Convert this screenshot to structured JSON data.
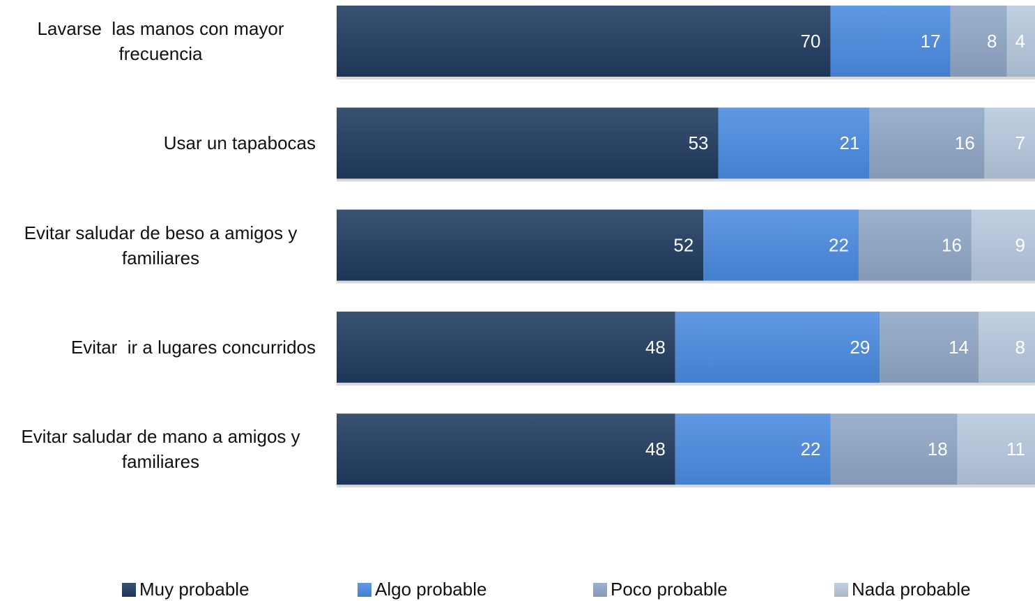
{
  "chart_data": {
    "type": "bar",
    "orientation": "horizontal",
    "stacking": "percent",
    "categories": [
      "Lavarse  las manos con mayor frecuencia",
      "Usar un tapabocas",
      "Evitar saludar de beso a amigos y familiares",
      "Evitar  ir a lugares concurridos",
      "Evitar saludar de mano a amigos y familiares"
    ],
    "series": [
      {
        "name": "Muy probable",
        "color": "#1f3a5f",
        "values": [
          70,
          53,
          52,
          48,
          48
        ]
      },
      {
        "name": "Algo probable",
        "color": "#4a8ae0",
        "values": [
          17,
          21,
          22,
          29,
          22
        ]
      },
      {
        "name": "Poco probable",
        "color": "#8ea6c6",
        "values": [
          8,
          16,
          16,
          14,
          18
        ]
      },
      {
        "name": "Nada probable",
        "color": "#b7c8de",
        "values": [
          4,
          7,
          9,
          8,
          11
        ]
      }
    ],
    "legend": "bottom"
  }
}
